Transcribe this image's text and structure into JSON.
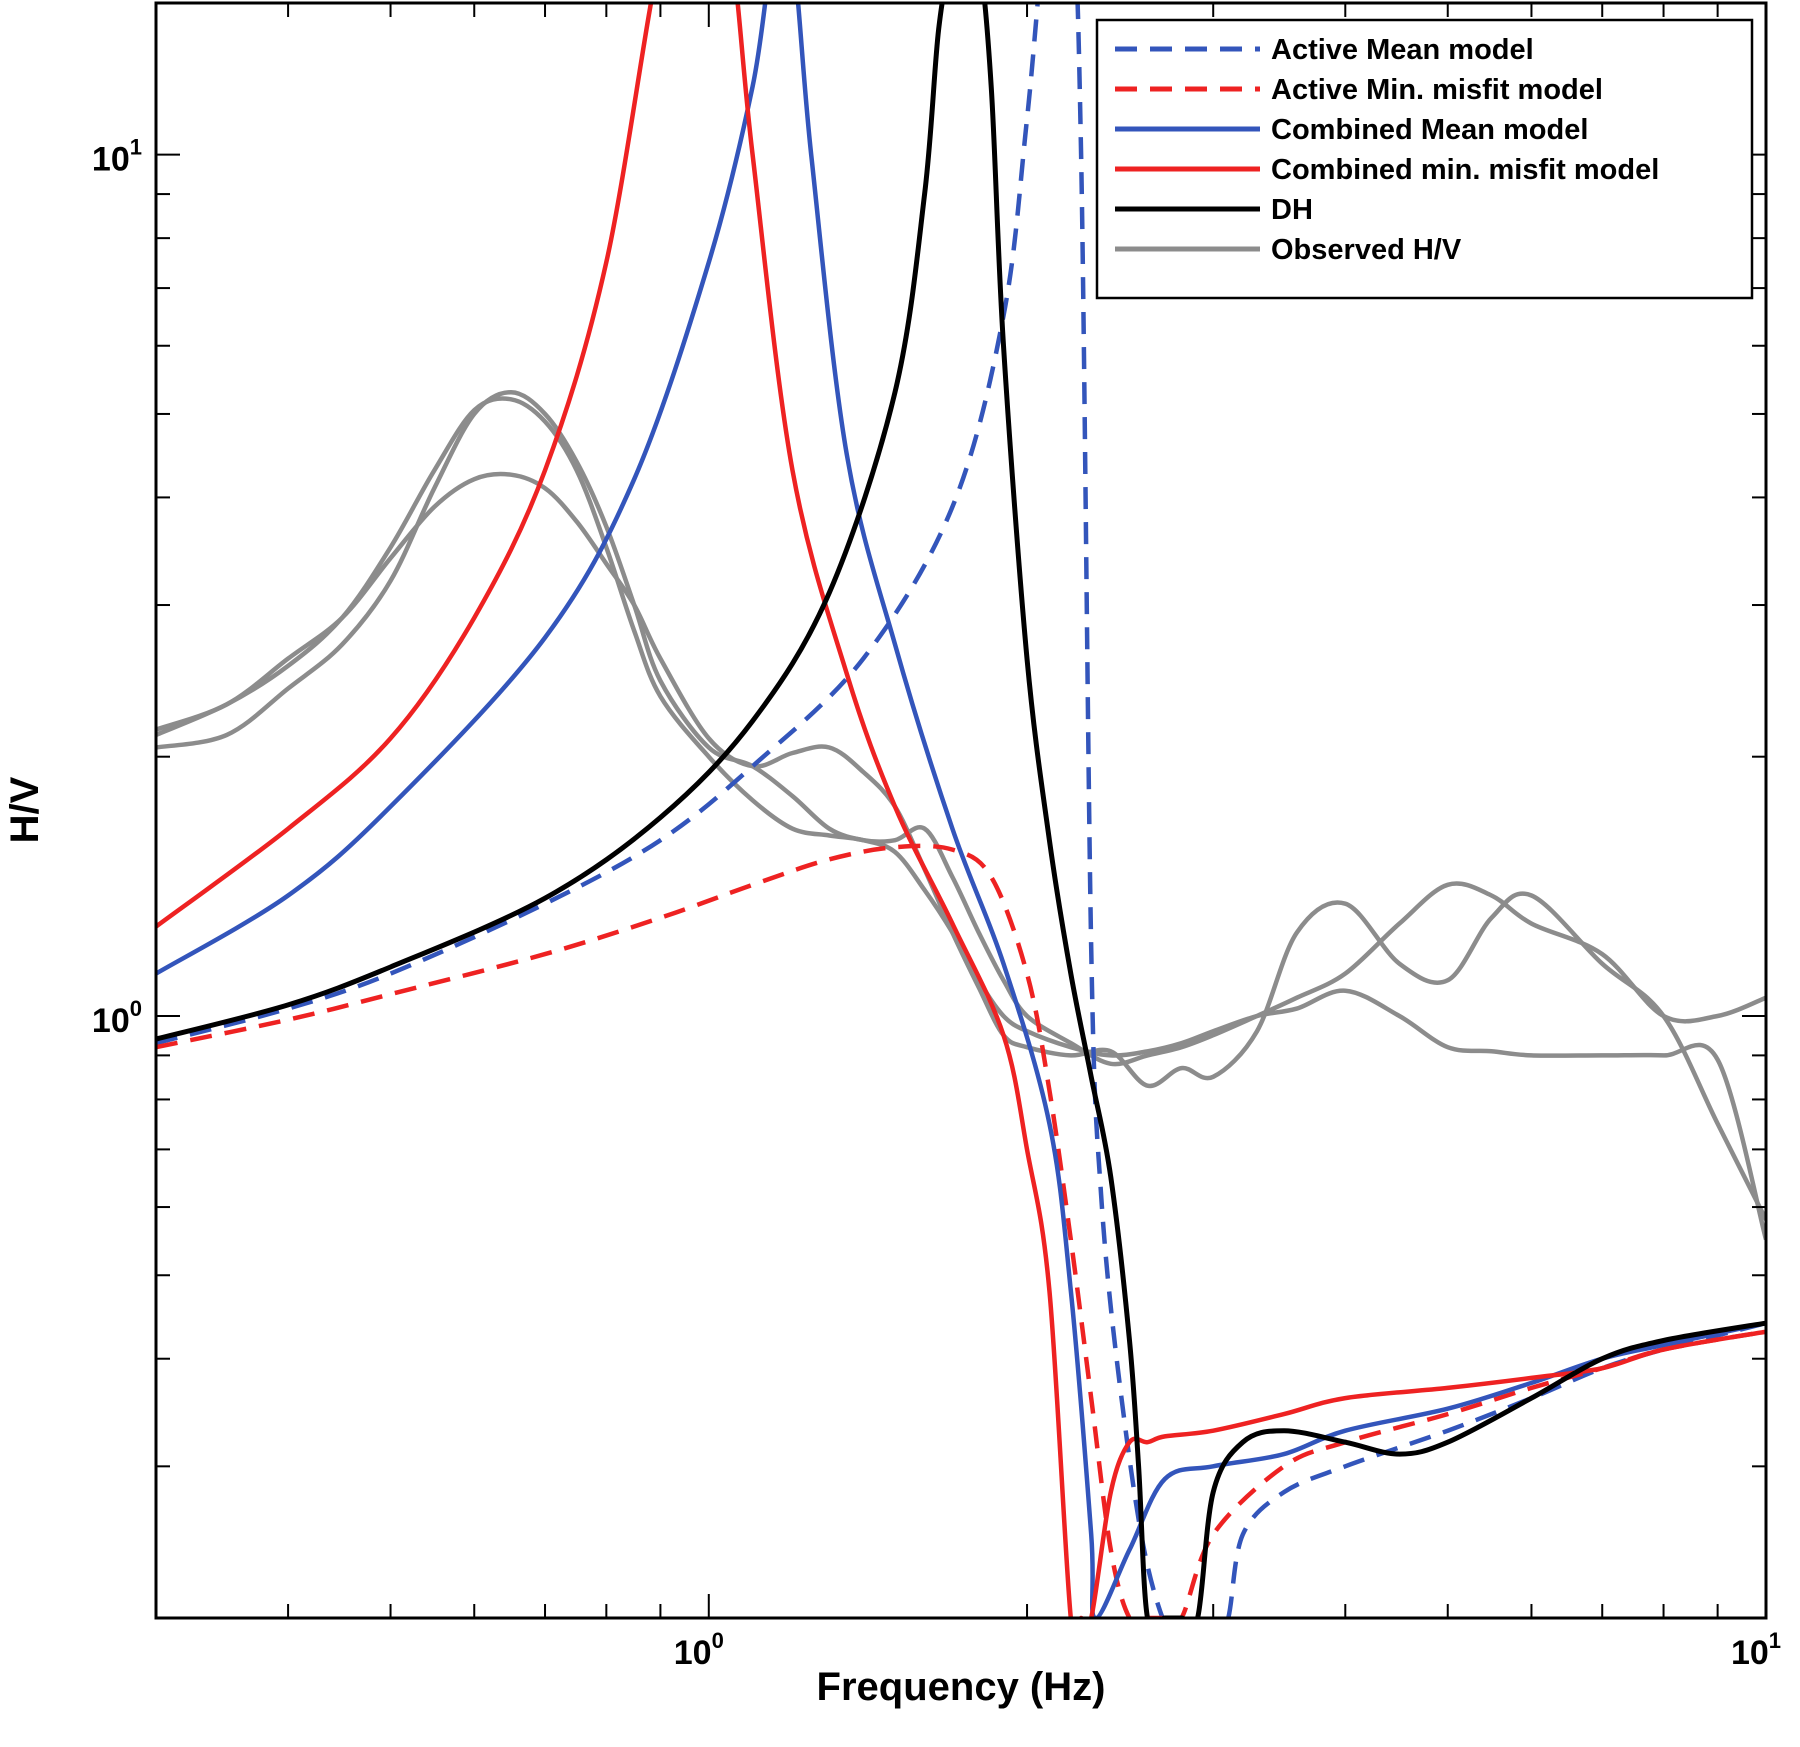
{
  "chart_data": {
    "type": "line",
    "title": "",
    "xlabel": "Frequency (Hz)",
    "ylabel": "H/V",
    "x_scale": "log",
    "y_scale": "log",
    "xlim": [
      0.3,
      10
    ],
    "ylim": [
      0.2,
      15
    ],
    "grid": false,
    "legend_position": "top-right",
    "x_ticks": [
      {
        "value": 1,
        "base": "10",
        "exp": "0"
      },
      {
        "value": 10,
        "base": "10",
        "exp": "1"
      }
    ],
    "y_ticks": [
      {
        "value": 1,
        "base": "10",
        "exp": "0"
      },
      {
        "value": 10,
        "base": "10",
        "exp": "1"
      }
    ],
    "series": [
      {
        "name": "Active Mean model",
        "color": "#3355bb",
        "style": "dashed",
        "x": [
          0.3,
          0.4,
          0.5,
          0.7,
          0.9,
          1.1,
          1.4,
          1.7,
          1.9,
          2.0,
          2.1,
          2.2,
          2.25,
          2.3,
          2.35,
          2.45,
          2.6,
          2.8,
          3.0,
          3.1,
          3.2,
          3.5,
          4.0,
          5.0,
          6.0,
          7.0,
          8.0,
          10.0
        ],
        "y": [
          0.93,
          1.02,
          1.12,
          1.35,
          1.6,
          1.95,
          2.6,
          3.9,
          6.5,
          11.0,
          20.0,
          20.0,
          10.0,
          1.2,
          0.62,
          0.37,
          0.23,
          0.18,
          0.18,
          0.2,
          0.25,
          0.28,
          0.3,
          0.33,
          0.36,
          0.39,
          0.41,
          0.44
        ]
      },
      {
        "name": "Active Min. misfit model",
        "color": "#ee2222",
        "style": "dashed",
        "x": [
          0.3,
          0.4,
          0.5,
          0.7,
          0.9,
          1.1,
          1.3,
          1.5,
          1.7,
          1.85,
          2.0,
          2.1,
          2.2,
          2.3,
          2.4,
          2.5,
          2.6,
          2.7,
          2.8,
          3.0,
          3.5,
          4.0,
          5.0,
          6.0,
          7.0,
          8.0,
          10.0
        ],
        "y": [
          0.92,
          0.99,
          1.06,
          1.18,
          1.3,
          1.42,
          1.52,
          1.57,
          1.56,
          1.45,
          1.12,
          0.82,
          0.55,
          0.36,
          0.24,
          0.2,
          0.2,
          0.2,
          0.2,
          0.25,
          0.3,
          0.32,
          0.345,
          0.37,
          0.39,
          0.41,
          0.43
        ]
      },
      {
        "name": "Combined Mean model",
        "color": "#3355bb",
        "style": "solid",
        "x": [
          0.3,
          0.4,
          0.5,
          0.7,
          0.85,
          1.0,
          1.1,
          1.15,
          1.2,
          1.25,
          1.35,
          1.5,
          1.7,
          1.9,
          2.1,
          2.2,
          2.3,
          2.32,
          2.5,
          2.7,
          3.0,
          3.5,
          4.0,
          5.0,
          6.0,
          7.0,
          8.0,
          10.0
        ],
        "y": [
          1.12,
          1.38,
          1.75,
          2.75,
          4.2,
          7.5,
          12.0,
          17.0,
          17.0,
          10.0,
          4.5,
          2.7,
          1.65,
          1.15,
          0.75,
          0.48,
          0.25,
          0.2,
          0.24,
          0.29,
          0.3,
          0.31,
          0.33,
          0.35,
          0.375,
          0.4,
          0.415,
          0.44
        ]
      },
      {
        "name": "Combined min. misfit model",
        "color": "#ee2222",
        "style": "solid",
        "x": [
          0.3,
          0.4,
          0.5,
          0.6,
          0.7,
          0.8,
          0.9,
          0.95,
          1.0,
          1.05,
          1.1,
          1.2,
          1.35,
          1.5,
          1.7,
          1.9,
          2.0,
          2.1,
          2.2,
          2.25,
          2.3,
          2.4,
          2.5,
          2.6,
          2.7,
          3.0,
          3.5,
          4.0,
          5.0,
          6.0,
          7.0,
          8.0,
          10.0
        ],
        "y": [
          1.27,
          1.65,
          2.1,
          2.9,
          4.3,
          7.5,
          17.0,
          17.0,
          17.0,
          17.0,
          10.0,
          4.3,
          2.5,
          1.75,
          1.28,
          0.95,
          0.7,
          0.48,
          0.2,
          0.2,
          0.2,
          0.28,
          0.32,
          0.32,
          0.325,
          0.33,
          0.345,
          0.36,
          0.37,
          0.38,
          0.39,
          0.41,
          0.43
        ]
      },
      {
        "name": "DH",
        "color": "#000000",
        "style": "solid",
        "x": [
          0.3,
          0.4,
          0.5,
          0.7,
          0.9,
          1.1,
          1.3,
          1.5,
          1.6,
          1.65,
          1.7,
          1.75,
          1.8,
          1.85,
          1.9,
          2.0,
          2.1,
          2.2,
          2.3,
          2.4,
          2.5,
          2.55,
          2.6,
          2.7,
          2.8,
          2.9,
          3.0,
          3.2,
          3.5,
          4.0,
          4.5,
          5.0,
          6.0,
          7.0,
          8.0,
          10.0
        ],
        "y": [
          0.94,
          1.03,
          1.14,
          1.37,
          1.7,
          2.2,
          3.1,
          5.3,
          9.0,
          14.0,
          17.0,
          17.0,
          17.0,
          12.0,
          6.0,
          2.6,
          1.6,
          1.12,
          0.85,
          0.65,
          0.42,
          0.3,
          0.2,
          0.2,
          0.2,
          0.2,
          0.28,
          0.32,
          0.33,
          0.32,
          0.31,
          0.32,
          0.36,
          0.4,
          0.42,
          0.44
        ]
      },
      {
        "name": "Observed H/V",
        "color": "#8c8c8c",
        "style": "solid",
        "x": [
          0.3,
          0.35,
          0.4,
          0.45,
          0.5,
          0.55,
          0.6,
          0.65,
          0.7,
          0.75,
          0.8,
          0.85,
          0.9,
          1.0,
          1.1,
          1.2,
          1.3,
          1.4,
          1.5,
          1.6,
          1.7,
          1.8,
          1.9,
          2.0,
          2.2,
          2.4,
          2.6,
          2.8,
          3.0,
          3.3,
          3.6,
          4.0,
          4.5,
          5.0,
          5.5,
          6.0,
          7.0,
          8.0,
          9.0,
          10.0
        ],
        "y": [
          2.05,
          2.12,
          2.4,
          2.7,
          3.2,
          4.1,
          5.0,
          5.3,
          5.0,
          4.4,
          3.7,
          3.0,
          2.45,
          2.05,
          1.95,
          1.8,
          1.65,
          1.6,
          1.6,
          1.65,
          1.45,
          1.25,
          1.1,
          1.0,
          0.93,
          0.88,
          0.9,
          0.92,
          0.95,
          1.0,
          1.05,
          1.12,
          1.28,
          1.42,
          1.38,
          1.28,
          1.18,
          1.0,
          1.0,
          1.05
        ]
      },
      {
        "name": "Observed H/V",
        "color": "#8c8c8c",
        "style": "solid",
        "x": [
          0.3,
          0.35,
          0.4,
          0.45,
          0.5,
          0.55,
          0.6,
          0.65,
          0.7,
          0.75,
          0.8,
          0.85,
          0.9,
          1.0,
          1.1,
          1.2,
          1.3,
          1.4,
          1.5,
          1.6,
          1.7,
          1.8,
          1.9,
          2.0,
          2.2,
          2.4,
          2.6,
          2.8,
          3.0,
          3.3,
          3.6,
          4.0,
          4.5,
          5.0,
          5.5,
          6.0,
          7.0,
          8.0,
          9.0,
          10.0
        ],
        "y": [
          2.12,
          2.3,
          2.55,
          2.9,
          3.5,
          4.3,
          5.05,
          5.2,
          4.9,
          4.3,
          3.5,
          2.8,
          2.35,
          2.0,
          1.78,
          1.65,
          1.62,
          1.6,
          1.55,
          1.4,
          1.25,
          1.1,
          1.0,
          0.96,
          0.92,
          0.9,
          0.91,
          0.93,
          0.96,
          1.0,
          1.02,
          1.07,
          1.0,
          0.92,
          0.91,
          0.9,
          0.9,
          0.9,
          0.89,
          0.55
        ]
      },
      {
        "name": "Observed H/V",
        "color": "#8c8c8c",
        "style": "solid",
        "x": [
          0.3,
          0.35,
          0.4,
          0.45,
          0.5,
          0.55,
          0.6,
          0.65,
          0.7,
          0.75,
          0.8,
          0.85,
          0.9,
          1.0,
          1.1,
          1.2,
          1.3,
          1.4,
          1.5,
          1.6,
          1.7,
          1.8,
          1.9,
          2.0,
          2.2,
          2.4,
          2.6,
          2.8,
          3.0,
          3.3,
          3.6,
          4.0,
          4.5,
          5.0,
          5.5,
          6.0,
          7.0,
          8.0,
          9.0,
          10.0
        ],
        "y": [
          2.15,
          2.3,
          2.6,
          2.9,
          3.4,
          3.9,
          4.2,
          4.25,
          4.1,
          3.75,
          3.35,
          3.0,
          2.6,
          2.1,
          1.95,
          2.02,
          2.05,
          1.92,
          1.75,
          1.48,
          1.25,
          1.08,
          0.95,
          0.92,
          0.9,
          0.91,
          0.83,
          0.87,
          0.85,
          0.96,
          1.25,
          1.35,
          1.15,
          1.1,
          1.3,
          1.38,
          1.15,
          1.0,
          0.75,
          0.58
        ]
      }
    ]
  }
}
